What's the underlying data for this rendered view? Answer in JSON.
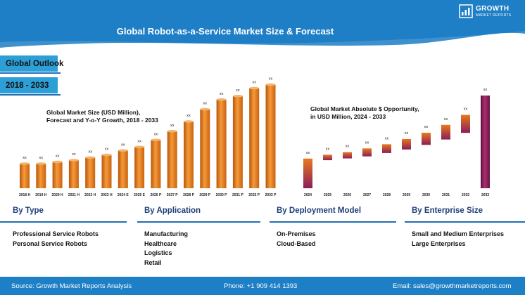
{
  "header": {
    "title": "Global Robot-as-a-Service Market Size & Forecast",
    "logo_name": "GROWTH",
    "logo_sub": "MARKET REPORTS"
  },
  "outlook": {
    "label": "Global Outlook",
    "period": "2018 - 2033"
  },
  "colors": {
    "header_bg": "#1e7ec6",
    "accent_blue": "#2c9fd6",
    "bar_orange": "#e8781c",
    "bar_purple": "#8a1e5a",
    "footer_bg": "#1d7fc6",
    "segment_title": "#1d3f7a"
  },
  "chart_data": [
    {
      "type": "bar",
      "title_lines": [
        "Global Market Size (USD Million),",
        "Forecast and Y-o-Y Growth, 2018 - 2033"
      ],
      "categories": [
        "2018 H",
        "2019 H",
        "2020 H",
        "2021 H",
        "2022 H",
        "2023 H",
        "2024 E",
        "2025 E",
        "2026 P",
        "2027 P",
        "2028 P",
        "2029 P",
        "2030 P",
        "2031 P",
        "2032 P",
        "2033 P"
      ],
      "values": [
        28,
        28,
        30,
        32,
        35,
        38,
        43,
        47,
        55,
        65,
        76,
        90,
        101,
        105,
        114,
        118
      ],
      "data_labels": [
        "xx",
        "xx",
        "xx",
        "xx",
        "xx",
        "xx",
        "xx",
        "xx",
        "xx",
        "xx",
        "xx",
        "xx",
        "xx",
        "xx",
        "xx",
        "xx"
      ],
      "ylim": [
        0,
        120
      ]
    },
    {
      "type": "bar",
      "title_lines": [
        "Global Market Absolute $ Opportunity,",
        "in USD Million, 2024 - 2033"
      ],
      "categories": [
        "2024",
        "2025",
        "2026",
        "2027",
        "2028",
        "2029",
        "2030",
        "2031",
        "2032",
        "2033"
      ],
      "values": [
        32,
        4,
        5,
        7,
        8,
        10,
        12,
        15,
        19,
        100
      ],
      "data_labels": [
        "xx",
        "xx",
        "xx",
        "xx",
        "xx",
        "xx",
        "xx",
        "xx",
        "xx",
        "xx"
      ],
      "ylim": [
        0,
        100
      ]
    }
  ],
  "segments": [
    {
      "title": "By Type",
      "items": [
        "Professional Service Robots",
        "Personal Service Robots"
      ]
    },
    {
      "title": "By Application",
      "items": [
        "Manufacturing",
        "Healthcare",
        "Logistics",
        "Retail"
      ]
    },
    {
      "title": "By Deployment Model",
      "items": [
        "On-Premises",
        "Cloud-Based"
      ]
    },
    {
      "title": "By Enterprise Size",
      "items": [
        "Small and Medium Enterprises",
        "Large Enterprises"
      ]
    }
  ],
  "footer": {
    "source": "Source: Growth Market Reports Analysis",
    "phone": "Phone: +1 909 414 1393",
    "email": "Email: sales@growthmarketreports.com"
  }
}
